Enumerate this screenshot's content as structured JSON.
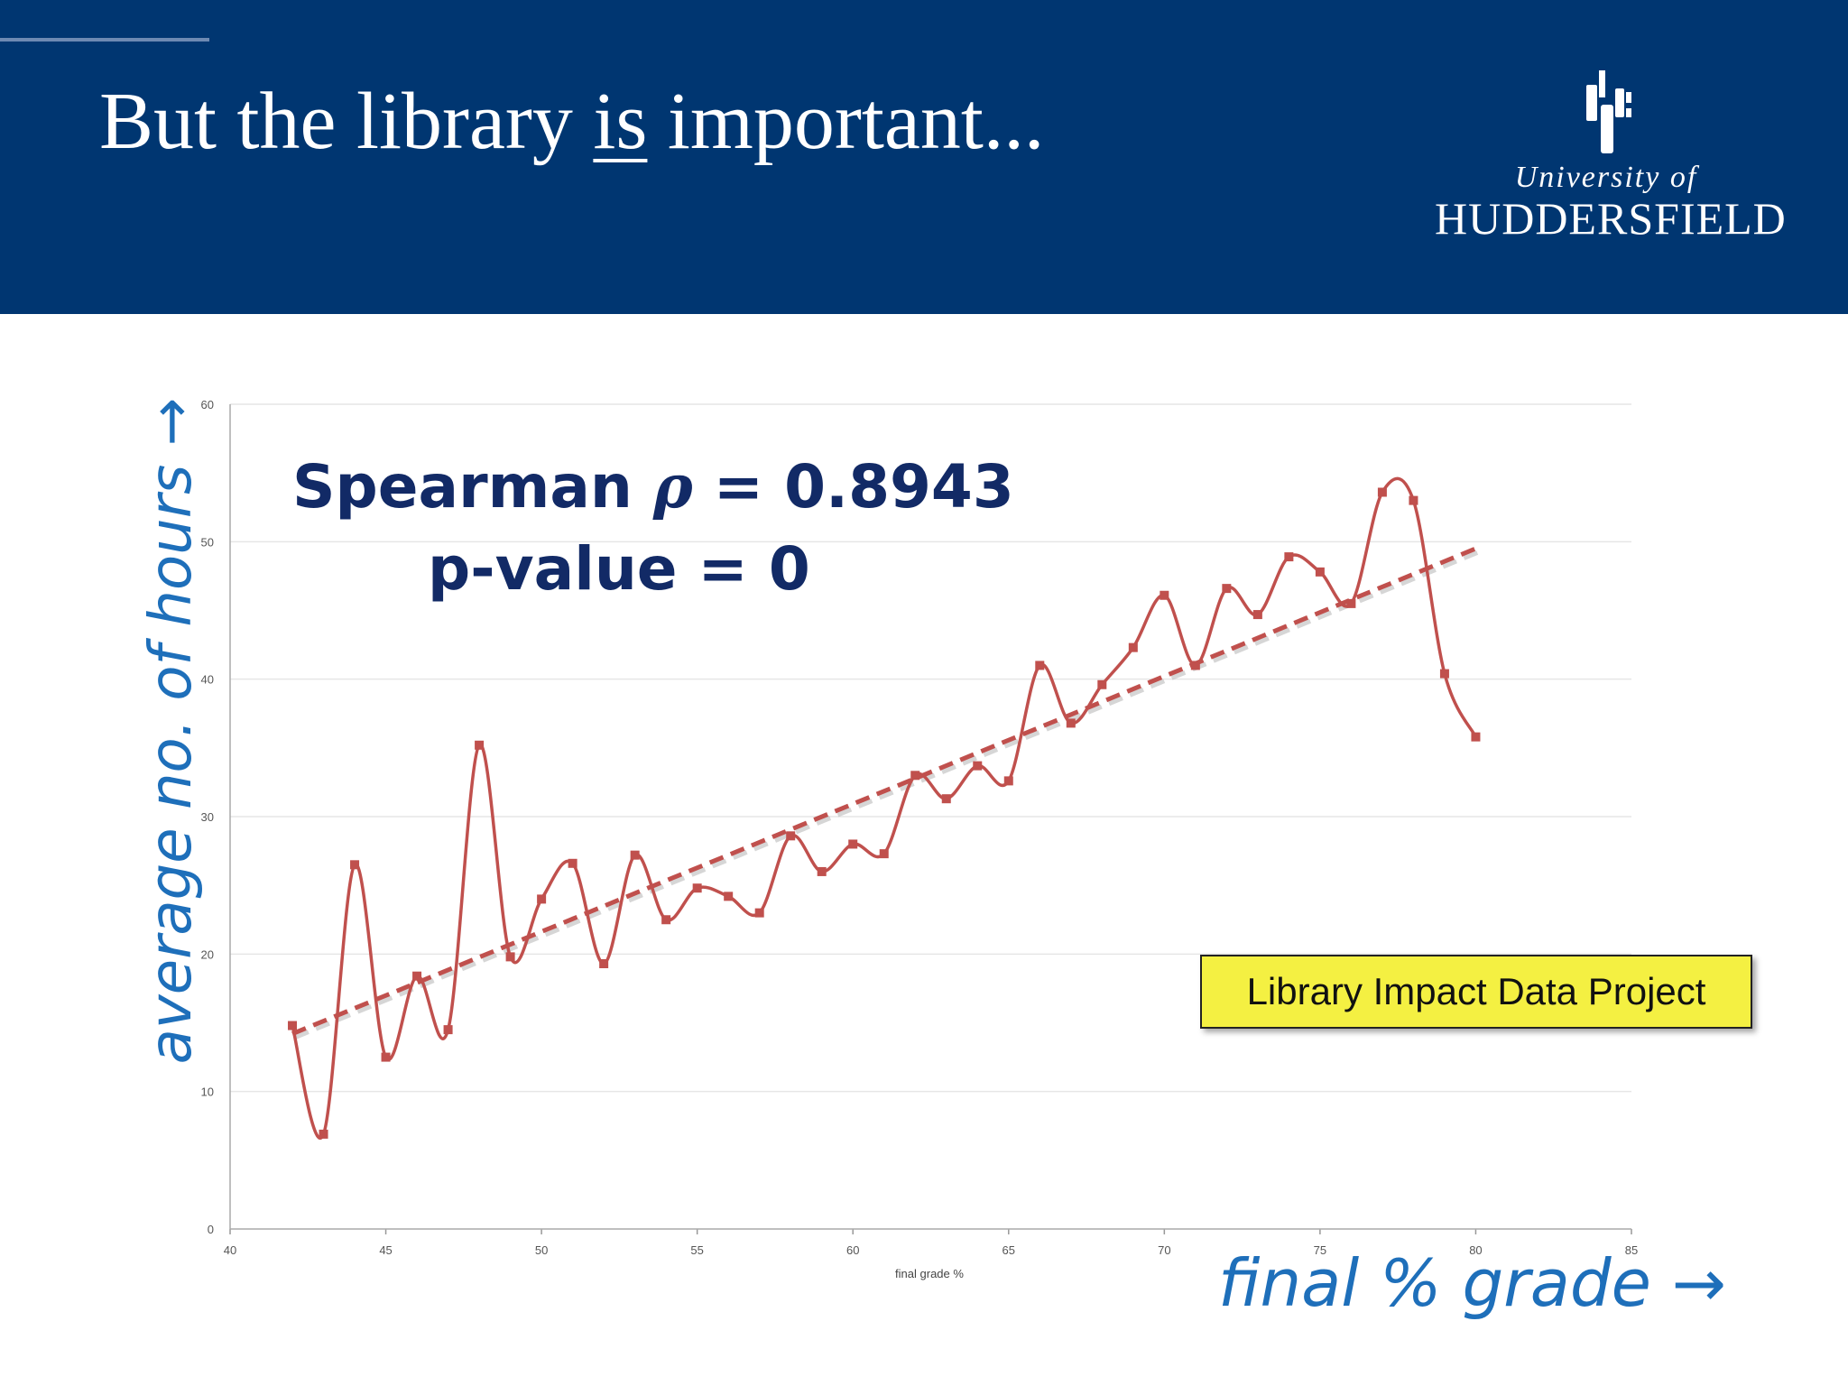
{
  "slide": {
    "title_pre": "But the library ",
    "title_underlined": "is",
    "title_post": " important...",
    "colors": {
      "header": "#003671",
      "text_blue": "#1e6fba",
      "stat_text": "#122a66",
      "badge": "#f4f042",
      "series": "#c0504d"
    }
  },
  "logo": {
    "icon": "huddersfield-crest-icon",
    "line1": "University of",
    "line2": "HUDDERSFIELD"
  },
  "axis_labels": {
    "y": "average no. of hours →",
    "x": "final % grade →"
  },
  "stats": {
    "line1_prefix": "Spearman ",
    "rho_symbol": "ρ",
    "line1_suffix": " = 0.8943",
    "line2": "p-value = 0"
  },
  "badge": "Library Impact Data Project",
  "chart_data": {
    "type": "line",
    "xlabel": "final grade %",
    "ylabel": "",
    "xlim": [
      40,
      85
    ],
    "ylim": [
      0,
      60
    ],
    "x_ticks": [
      "40",
      "45",
      "50",
      "55",
      "60",
      "65",
      "70",
      "75",
      "80",
      "85"
    ],
    "y_ticks": [
      "0",
      "10",
      "20",
      "30",
      "40",
      "50",
      "60"
    ],
    "grid": true,
    "smoothed": true,
    "series": [
      {
        "x": [
          42,
          43,
          44,
          45,
          46,
          47,
          48,
          49,
          50,
          51,
          52,
          53,
          54,
          55,
          56,
          57,
          58,
          59,
          60,
          61,
          62,
          63,
          64,
          65,
          66,
          67,
          68,
          69,
          70,
          71,
          72,
          73,
          74,
          75,
          76,
          77,
          78,
          79,
          80
        ],
        "values": [
          14.8,
          6.9,
          26.5,
          12.5,
          18.4,
          14.5,
          35.2,
          19.8,
          24.0,
          26.6,
          19.3,
          27.2,
          22.5,
          24.8,
          24.2,
          23.0,
          28.6,
          26.0,
          28.0,
          27.3,
          33.0,
          31.3,
          33.7,
          32.6,
          41.0,
          36.8,
          39.6,
          42.3,
          46.1,
          41.0,
          46.6,
          44.7,
          48.9,
          47.8,
          45.5,
          53.6,
          53.0,
          40.4,
          35.8
        ],
        "color": "#c0504d"
      }
    ],
    "trendline": {
      "style": "dashed",
      "x": [
        42,
        80
      ],
      "values": [
        14.2,
        49.5
      ],
      "color": "#c0504d"
    }
  }
}
